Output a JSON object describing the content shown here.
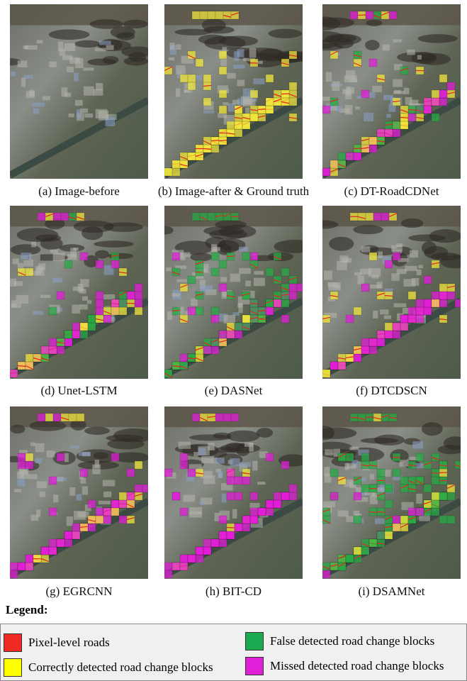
{
  "panels": [
    {
      "caption": "(a) Image-before"
    },
    {
      "caption": "(b) Image-after & Ground truth"
    },
    {
      "caption": "(c) DT-RoadCDNet"
    },
    {
      "caption": "(d) Unet-LSTM"
    },
    {
      "caption": "(e) DASNet"
    },
    {
      "caption": "(f) DTCDSCN"
    },
    {
      "caption": "(g) EGRCNN"
    },
    {
      "caption": "(h) BIT-CD"
    },
    {
      "caption": "(i) DSAMNet"
    }
  ],
  "legend": {
    "title": "Legend:",
    "items": [
      {
        "label": "Pixel-level roads",
        "color": "#ee2a22"
      },
      {
        "label": "Correctly detected road change blocks",
        "color": "#ffff00"
      },
      {
        "label": "False detected road change blocks",
        "color": "#1aaa50"
      },
      {
        "label": "Missed detected road change blocks",
        "color": "#e020d8"
      }
    ]
  }
}
